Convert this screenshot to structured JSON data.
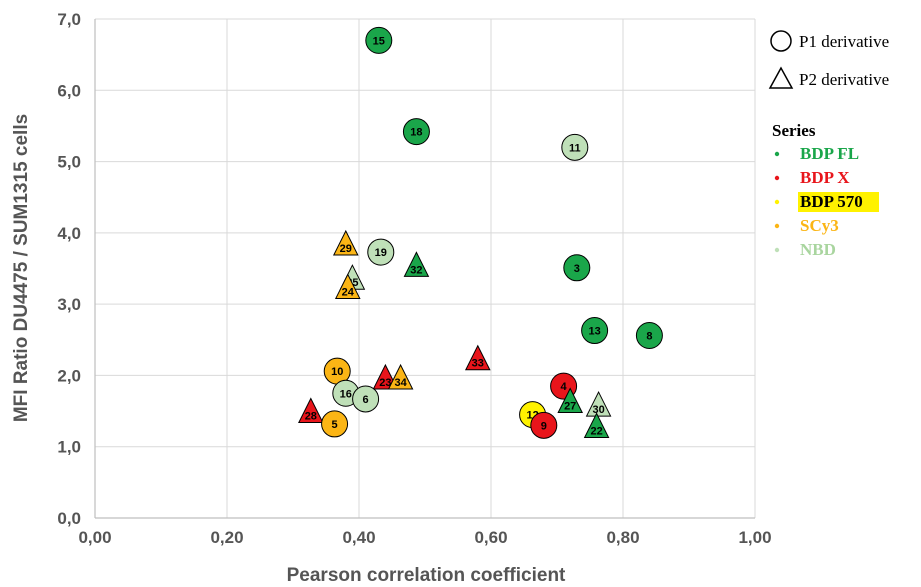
{
  "chart_data": {
    "type": "scatter",
    "xlabel": "Pearson correlation coefficient",
    "ylabel": "MFI Ratio DU4475 / SUM1315 cells",
    "xlim": [
      0,
      1
    ],
    "ylim": [
      0,
      7
    ],
    "x_ticks": [
      "0,00",
      "0,20",
      "0,40",
      "0,60",
      "0,80",
      "1,00"
    ],
    "y_ticks": [
      "0,0",
      "1,0",
      "2,0",
      "3,0",
      "4,0",
      "5,0",
      "6,0",
      "7,0"
    ],
    "grid": true,
    "shape_legend": [
      {
        "shape": "circle",
        "label": "P1 derivative"
      },
      {
        "shape": "triangle",
        "label": "P2 derivative"
      }
    ],
    "series_legend_title": "Series",
    "series": [
      {
        "name": "BDP FL",
        "color": "#1aa64a",
        "text_color": "#1aa64a",
        "highlight": ""
      },
      {
        "name": "BDP X",
        "color": "#e8151b",
        "text_color": "#e8151b",
        "highlight": ""
      },
      {
        "name": "BDP 570",
        "color": "#fff200",
        "text_color": "#000000",
        "highlight": "#fff200"
      },
      {
        "name": "SCy3",
        "color": "#fbb515",
        "text_color": "#fbb515",
        "highlight": ""
      },
      {
        "name": "NBD",
        "color": "#bfe0b8",
        "text_color": "#a9d59f",
        "highlight": ""
      }
    ],
    "points": [
      {
        "label": "15",
        "x": 0.43,
        "y": 6.7,
        "shape": "circle",
        "series": "BDP FL"
      },
      {
        "label": "18",
        "x": 0.487,
        "y": 5.42,
        "shape": "circle",
        "series": "BDP FL"
      },
      {
        "label": "11",
        "x": 0.727,
        "y": 5.2,
        "shape": "circle",
        "series": "NBD"
      },
      {
        "label": "29",
        "x": 0.38,
        "y": 3.83,
        "shape": "triangle",
        "series": "SCy3"
      },
      {
        "label": "19",
        "x": 0.433,
        "y": 3.73,
        "shape": "circle",
        "series": "NBD"
      },
      {
        "label": "32",
        "x": 0.487,
        "y": 3.53,
        "shape": "triangle",
        "series": "BDP FL"
      },
      {
        "label": "3",
        "x": 0.73,
        "y": 3.51,
        "shape": "circle",
        "series": "BDP FL"
      },
      {
        "label": "25",
        "x": 0.39,
        "y": 3.35,
        "shape": "triangle",
        "series": "NBD"
      },
      {
        "label": "24",
        "x": 0.383,
        "y": 3.22,
        "shape": "triangle",
        "series": "SCy3"
      },
      {
        "label": "13",
        "x": 0.757,
        "y": 2.63,
        "shape": "circle",
        "series": "BDP FL"
      },
      {
        "label": "8",
        "x": 0.84,
        "y": 2.56,
        "shape": "circle",
        "series": "BDP FL"
      },
      {
        "label": "33",
        "x": 0.58,
        "y": 2.22,
        "shape": "triangle",
        "series": "BDP X"
      },
      {
        "label": "10",
        "x": 0.367,
        "y": 2.06,
        "shape": "circle",
        "series": "SCy3"
      },
      {
        "label": "23",
        "x": 0.44,
        "y": 1.95,
        "shape": "triangle",
        "series": "BDP X"
      },
      {
        "label": "34",
        "x": 0.463,
        "y": 1.95,
        "shape": "triangle",
        "series": "SCy3"
      },
      {
        "label": "4",
        "x": 0.71,
        "y": 1.85,
        "shape": "circle",
        "series": "BDP X"
      },
      {
        "label": "16",
        "x": 0.38,
        "y": 1.75,
        "shape": "circle",
        "series": "NBD"
      },
      {
        "label": "6",
        "x": 0.41,
        "y": 1.67,
        "shape": "circle",
        "series": "NBD"
      },
      {
        "label": "27",
        "x": 0.72,
        "y": 1.62,
        "shape": "triangle",
        "series": "BDP FL"
      },
      {
        "label": "30",
        "x": 0.763,
        "y": 1.57,
        "shape": "triangle",
        "series": "NBD"
      },
      {
        "label": "28",
        "x": 0.327,
        "y": 1.48,
        "shape": "triangle",
        "series": "BDP X"
      },
      {
        "label": "12",
        "x": 0.663,
        "y": 1.45,
        "shape": "circle",
        "series": "BDP 570"
      },
      {
        "label": "5",
        "x": 0.363,
        "y": 1.32,
        "shape": "circle",
        "series": "SCy3"
      },
      {
        "label": "9",
        "x": 0.68,
        "y": 1.3,
        "shape": "circle",
        "series": "BDP X"
      },
      {
        "label": "22",
        "x": 0.76,
        "y": 1.27,
        "shape": "triangle",
        "series": "BDP FL"
      }
    ]
  }
}
